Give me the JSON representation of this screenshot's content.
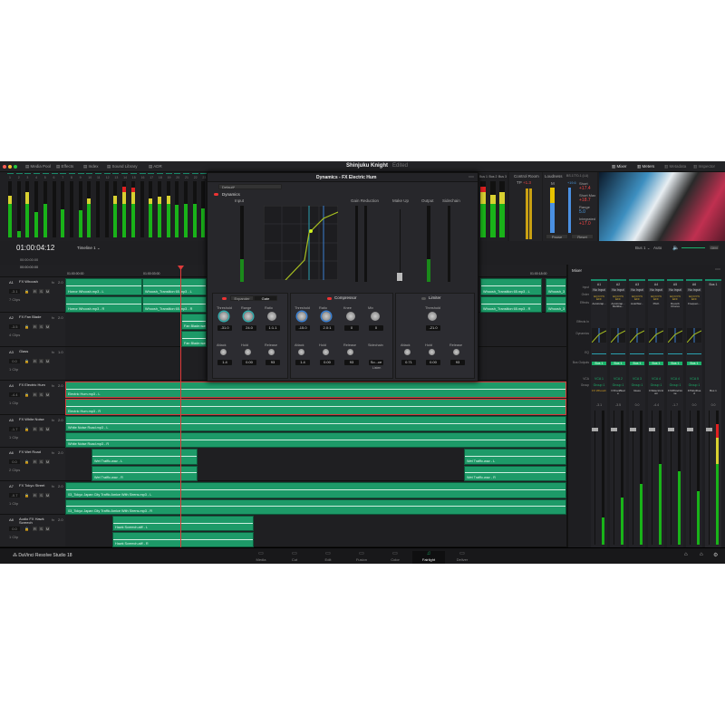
{
  "window": {
    "title": "Shinjuku Knight",
    "status": "Edited"
  },
  "toolbar": {
    "items": [
      {
        "label": "Media Pool",
        "icon": "media-pool-icon"
      },
      {
        "label": "Effects",
        "icon": "effects-icon"
      },
      {
        "label": "Index",
        "icon": "index-icon"
      },
      {
        "label": "Sound Library",
        "icon": "sound-library-icon"
      },
      {
        "label": "ADR",
        "icon": "adr-icon"
      }
    ],
    "right": [
      {
        "label": "Mixer",
        "icon": "mixer-icon"
      },
      {
        "label": "Meters",
        "icon": "meters-icon"
      },
      {
        "label": "Metadata",
        "icon": "metadata-icon"
      },
      {
        "label": "Inspector",
        "icon": "inspector-icon"
      }
    ]
  },
  "meters": {
    "channels": [
      "1",
      "2",
      "3",
      "4",
      "5",
      "6",
      "7",
      "8",
      "9",
      "10",
      "11",
      "12",
      "13",
      "14",
      "15",
      "16",
      "17",
      "18",
      "19",
      "20",
      "21",
      "22",
      "23"
    ],
    "levels": [
      0.75,
      0.12,
      0.8,
      0.45,
      0.6,
      0,
      0.5,
      0,
      0.48,
      0.7,
      0,
      0,
      0.75,
      0.9,
      0.88,
      0,
      0.7,
      0.72,
      0.75,
      0.58,
      0.6,
      0.6,
      0.52
    ],
    "buses": [
      {
        "label": "Bus 1",
        "level": 0.9
      },
      {
        "label": "Bus 2",
        "level": 0.76
      },
      {
        "label": "Bus 3",
        "level": 0.8
      }
    ]
  },
  "control_room": {
    "title": "Control Room",
    "tp_label": "TP",
    "tp_value": "+1.3"
  },
  "loudness": {
    "title": "Loudness",
    "standard": "BS.1770-1 (LU)",
    "m_label": "M",
    "m_value": "+19.6",
    "short_label": "Short",
    "short": "+17.4",
    "short_max_label": "Short Max",
    "short_max": "+18.7",
    "range_label": "Range",
    "range": "5.0",
    "integrated_label": "Integrated",
    "integrated": "+17.0",
    "pause": "Pause",
    "reset": "Reset"
  },
  "timecode": {
    "current": "01:00:04:12",
    "timeline": "Timeline 1",
    "rows": [
      "00:00:00:00",
      "00:00:00:00"
    ]
  },
  "monitor": {
    "bus": "Bus 1",
    "mode": "Auto",
    "dim": "DIM",
    "volume": 0.85
  },
  "dynamics": {
    "title": "Dynamics - FX Electric Hum",
    "preset": "Default*",
    "section": "Dynamics",
    "input": "Input",
    "gain_reduction": "Gain Reduction",
    "make_up": "Make Up",
    "output": "Output",
    "sidechain": "Sidechain",
    "expander_tab": "Expander",
    "gate_tab": "Gate",
    "compressor": "Compressor",
    "limiter": "Limiter",
    "gate": [
      {
        "label": "Threshold",
        "value": "-31.0"
      },
      {
        "label": "Range",
        "value": "24.0"
      },
      {
        "label": "Ratio",
        "value": "1:1.1"
      },
      {
        "label": "Attack",
        "value": "1.4"
      },
      {
        "label": "Hold",
        "value": "0.00"
      },
      {
        "label": "Release",
        "value": "93"
      }
    ],
    "comp": [
      {
        "label": "Threshold",
        "value": "-15.0"
      },
      {
        "label": "Ratio",
        "value": "2.0:1"
      },
      {
        "label": "Knee",
        "value": "0"
      },
      {
        "label": "Mix",
        "value": "0"
      },
      {
        "label": "Attack",
        "value": "1.4"
      },
      {
        "label": "Hold",
        "value": "0.00"
      },
      {
        "label": "Release",
        "value": "93"
      },
      {
        "label": "Sidechain",
        "value": "So...ce"
      }
    ],
    "comp_listen": "Listen",
    "lim": [
      {
        "label": "Threshold",
        "value": "-21.0"
      },
      {
        "label": "Attack",
        "value": "0.71"
      },
      {
        "label": "Hold",
        "value": "0.00"
      },
      {
        "label": "Release",
        "value": "93"
      }
    ]
  },
  "ruler": [
    "01:00:00:00",
    "01:00:03:00",
    "01:00:18:00"
  ],
  "tracks": [
    {
      "id": "A1",
      "name": "FX Whoosh",
      "fmt": "2.0",
      "vol": "-3.1",
      "clips": "7 Clips",
      "items": [
        "Horror Whoosh.mp3 - L",
        "Horror Whoosh.mp3 - R",
        "Whoosh_Transition 65.mp3 - L",
        "Whoosh_Transition 65.mp3 - R",
        "Whoosh_Transition 65.mp3 - L",
        "Whoosh_Transition 65.mp3 - R",
        "Whoosh_3 - L",
        "Whoosh_3 - R"
      ]
    },
    {
      "id": "A2",
      "name": "FX Fan Blade",
      "fmt": "2.0",
      "vol": "-3.5",
      "clips": "4 Clips",
      "items": [
        "Fan Blade.wav - L",
        "Fan Blade.wav - R"
      ]
    },
    {
      "id": "A3",
      "name": "Glass",
      "fmt": "1.0",
      "vol": "0.0",
      "clips": "1 Clip",
      "items": []
    },
    {
      "id": "A4",
      "name": "FX Electric Hum",
      "fmt": "2.0",
      "vol": "-4.4",
      "clips": "1 Clip",
      "items": [
        "Electric Hum.mp3 - L",
        "Electric Hum.mp3 - R"
      ]
    },
    {
      "id": "A5",
      "name": "FX White Noise",
      "fmt": "2.0",
      "vol": "-1.7",
      "clips": "1 Clip",
      "items": [
        "White Noise Road.mp3 - L",
        "White Noise Road.mp3 - R"
      ]
    },
    {
      "id": "A6",
      "name": "FX Wet Road",
      "fmt": "2.0",
      "vol": "0.0",
      "clips": "2 Clips",
      "items": [
        "Wet Traffic.wav - L",
        "Wet Traffic.wav - R",
        "Wet Traffic.wav - L",
        "Wet Traffic.wav - R"
      ]
    },
    {
      "id": "A7",
      "name": "FX Tokyo Street",
      "fmt": "2.0",
      "vol": "-0.7",
      "clips": "1 Clip",
      "items": [
        "03_Tokyo Japan City Traffic Amice With Sirens.mp3 - L",
        "03_Tokyo Japan City Traffic Amice With Sirens.mp3 - R"
      ]
    },
    {
      "id": "A8",
      "name": "Audio FX Hawk Screech",
      "fmt": "2.0",
      "vol": "0.0",
      "clips": "1 Clip",
      "items": [
        "Hawk Screech.aiff - L",
        "Hawk Screech.aiff - R"
      ]
    }
  ],
  "mixer": {
    "title": "Mixer",
    "row_labels": [
      "Input",
      "Order",
      "Effects",
      "Effects In",
      "Dynamics",
      "EQ",
      "Bus Outputs",
      "VCA",
      "Group"
    ],
    "columns": [
      {
        "id": "A1",
        "input": "No Input",
        "order": "EQ DYN EFF",
        "effects": "AutoGrap...",
        "bus": "Bus 1",
        "vca": "VCA 1",
        "group": "Group 1",
        "name": "FX Whoosh",
        "vol": "-3.1",
        "level": 0.2
      },
      {
        "id": "A2",
        "input": "No Input",
        "order": "EQ DYN EFF",
        "effects": "AutoGrap... Multiba...",
        "bus": "Bus 1",
        "vca": "VCA 2",
        "group": "Group 1",
        "name": "FXFanBlade",
        "vol": "-3.5",
        "level": 0.35
      },
      {
        "id": "A3",
        "input": "No Input",
        "order": "EQ DYN EFF",
        "effects": "AutoWar...",
        "bus": "Bus 1",
        "vca": "VCA 3",
        "group": "Group 1",
        "name": "Glass",
        "vol": "0.0",
        "level": 0.45
      },
      {
        "id": "A4",
        "input": "No Input",
        "order": "EQ DYN EFF",
        "effects": "Pitch",
        "bus": "Bus 1",
        "vca": "VCA 4",
        "group": "Group 1",
        "name": "FXElectricHum",
        "vol": "-4.4",
        "level": 0.6
      },
      {
        "id": "A5",
        "input": "No Input",
        "order": "EQ DYN EFF",
        "effects": "Reverb Chorus",
        "bus": "Bus 1",
        "vca": "VCA 4",
        "group": "Group 1",
        "name": "FXWhiteNoise",
        "vol": "-1.7",
        "level": 0.55
      },
      {
        "id": "A6",
        "input": "No Input",
        "order": "EQ DYN EFF",
        "effects": "Frequen...",
        "bus": "Bus 1",
        "vca": "VCA 5",
        "group": "Group 1",
        "name": "FXWetRoad",
        "vol": "0.0",
        "level": 0.4
      },
      {
        "id": "Bus 1",
        "input": "",
        "order": "",
        "effects": "",
        "bus": "",
        "vca": "",
        "group": "",
        "name": "Bus 1",
        "vol": "0.0",
        "level": 0.9
      }
    ]
  },
  "pages": [
    {
      "label": "Media",
      "icon": "media-icon"
    },
    {
      "label": "Cut",
      "icon": "cut-icon"
    },
    {
      "label": "Edit",
      "icon": "edit-icon"
    },
    {
      "label": "Fusion",
      "icon": "fusion-icon"
    },
    {
      "label": "Color",
      "icon": "color-icon"
    },
    {
      "label": "Fairlight",
      "icon": "fairlight-icon",
      "active": true
    },
    {
      "label": "Deliver",
      "icon": "deliver-icon"
    }
  ],
  "brand": "DaVinci Resolve Studio 18",
  "colors": {
    "clip": "#1d9a68",
    "playhead": "#e03a3a",
    "accent": "#1cb06a",
    "selected_border": "#d43b3b"
  }
}
